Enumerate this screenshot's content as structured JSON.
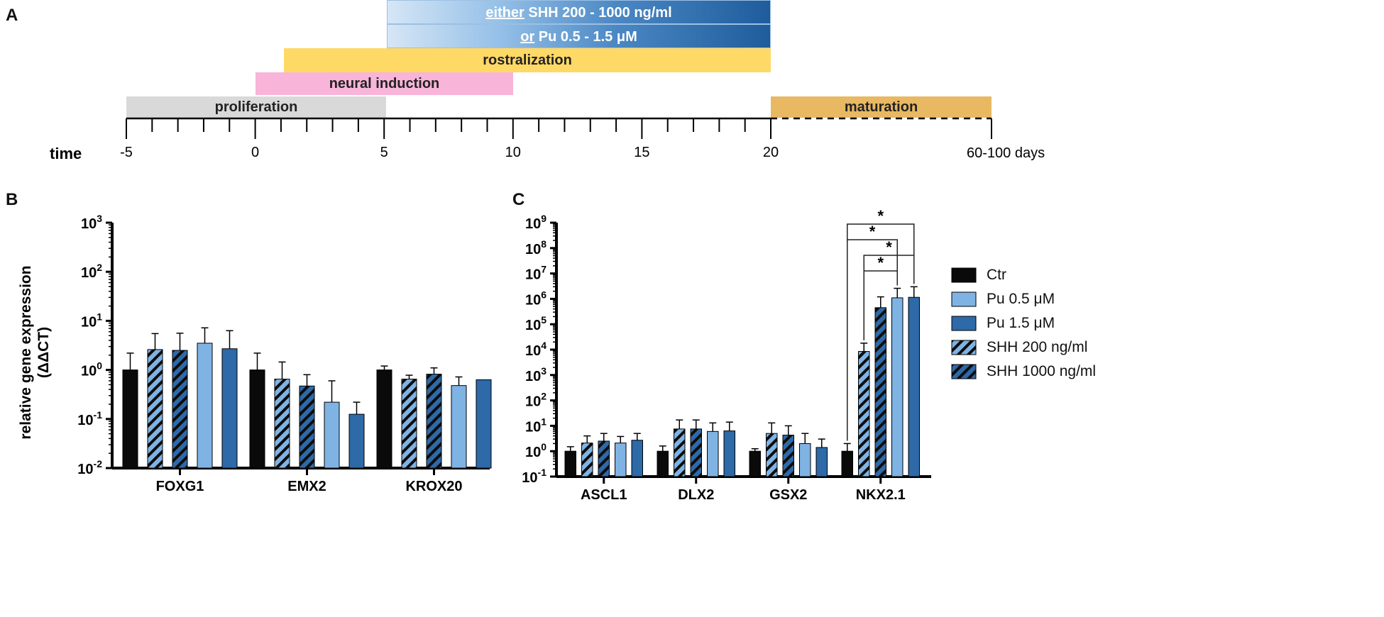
{
  "panel_labels": {
    "a": "A",
    "b": "B",
    "c": "C"
  },
  "timeline": {
    "axis_label": "time",
    "end_label": "60-100 days",
    "ticks": [
      -5,
      0,
      5,
      10,
      15,
      20
    ],
    "bars": {
      "either_prefix": "either",
      "either_text": " SHH 200 - 1000 ng/ml",
      "or_prefix": "or",
      "or_text": " Pu 0.5 - 1.5 μM",
      "rostralization": "rostralization",
      "neural_induction": "neural induction",
      "proliferation": "proliferation",
      "maturation": "maturation"
    }
  },
  "chart_data": [
    {
      "type": "bar",
      "panel": "B",
      "ylabel_line1": "relative gene expression",
      "ylabel_line2": "(ΔΔCT)",
      "yscale": "log",
      "ylim": [
        0.01,
        1000
      ],
      "ytick_labels": [
        "10-2",
        "10-1",
        "100",
        "101",
        "102",
        "103"
      ],
      "categories": [
        "FOXG1",
        "EMX2",
        "KROX20"
      ],
      "series": [
        {
          "name": "Ctr",
          "values": [
            1.0,
            1.0,
            1.0
          ],
          "errors": [
            2.2,
            2.2,
            1.2
          ]
        },
        {
          "name": "SHH 200 ng/ml",
          "values": [
            2.6,
            0.65,
            0.65
          ],
          "errors": [
            5.5,
            1.45,
            0.78
          ]
        },
        {
          "name": "SHH 1000 ng/ml",
          "values": [
            2.5,
            0.47,
            0.82
          ],
          "errors": [
            5.6,
            0.8,
            1.1
          ]
        },
        {
          "name": "Pu 0.5 μM",
          "values": [
            3.5,
            0.22,
            0.48
          ],
          "errors": [
            7.2,
            0.6,
            0.72
          ]
        },
        {
          "name": "Pu 1.5 μM",
          "values": [
            2.7,
            0.125,
            0.63
          ],
          "errors": [
            6.3,
            0.22,
            null
          ]
        }
      ]
    },
    {
      "type": "bar",
      "panel": "C",
      "yscale": "log",
      "ylim": [
        0.1,
        1000000000
      ],
      "ytick_labels": [
        "10-1",
        "100",
        "101",
        "102",
        "103",
        "104",
        "105",
        "106",
        "107",
        "108",
        "109"
      ],
      "categories": [
        "ASCL1",
        "DLX2",
        "GSX2",
        "NKX2.1"
      ],
      "series": [
        {
          "name": "Ctr",
          "values": [
            1.0,
            1.0,
            1.0,
            1.0
          ],
          "errors": [
            1.5,
            1.6,
            1.25,
            2.0
          ]
        },
        {
          "name": "SHH 200 ng/ml",
          "values": [
            2.1,
            7.5,
            5.0,
            8500
          ],
          "errors": [
            4.0,
            17,
            13,
            18000
          ]
        },
        {
          "name": "SHH 1000 ng/ml",
          "values": [
            2.5,
            7.5,
            4.3,
            450000
          ],
          "errors": [
            5.0,
            17,
            10,
            1200000
          ]
        },
        {
          "name": "Pu 0.5 μM",
          "values": [
            2.1,
            6.0,
            2.0,
            1100000
          ],
          "errors": [
            3.8,
            13,
            5.0,
            2600000
          ]
        },
        {
          "name": "Pu 1.5 μM",
          "values": [
            2.7,
            6.3,
            1.4,
            1150000
          ],
          "errors": [
            5.0,
            14,
            3.0,
            3000000
          ]
        }
      ],
      "significance": [
        {
          "label": "*",
          "from": "Ctr",
          "to": "Pu 1.5 μM"
        },
        {
          "label": "*",
          "from": "Ctr",
          "to": "Pu 0.5 μM"
        },
        {
          "label": "*",
          "from": "SHH 200 ng/ml",
          "to": "Pu 1.5 μM"
        },
        {
          "label": "*",
          "from": "SHH 200 ng/ml",
          "to": "Pu 0.5 μM"
        }
      ]
    }
  ],
  "legend": [
    {
      "name": "Ctr",
      "style": "solid",
      "color": "#0a0a0a"
    },
    {
      "name": "Pu 0.5 μM",
      "style": "solid",
      "color": "#7fb3e4"
    },
    {
      "name": "Pu 1.5 μM",
      "style": "solid",
      "color": "#2e69a8"
    },
    {
      "name": "SHH 200 ng/ml",
      "style": "hatch",
      "color": "#7fb3e4"
    },
    {
      "name": "SHH 1000 ng/ml",
      "style": "hatch",
      "color": "#2e69a8"
    }
  ],
  "colors": {
    "ctr": "#0a0a0a",
    "pu_light": "#7fb3e4",
    "pu_dark": "#2e69a8"
  }
}
